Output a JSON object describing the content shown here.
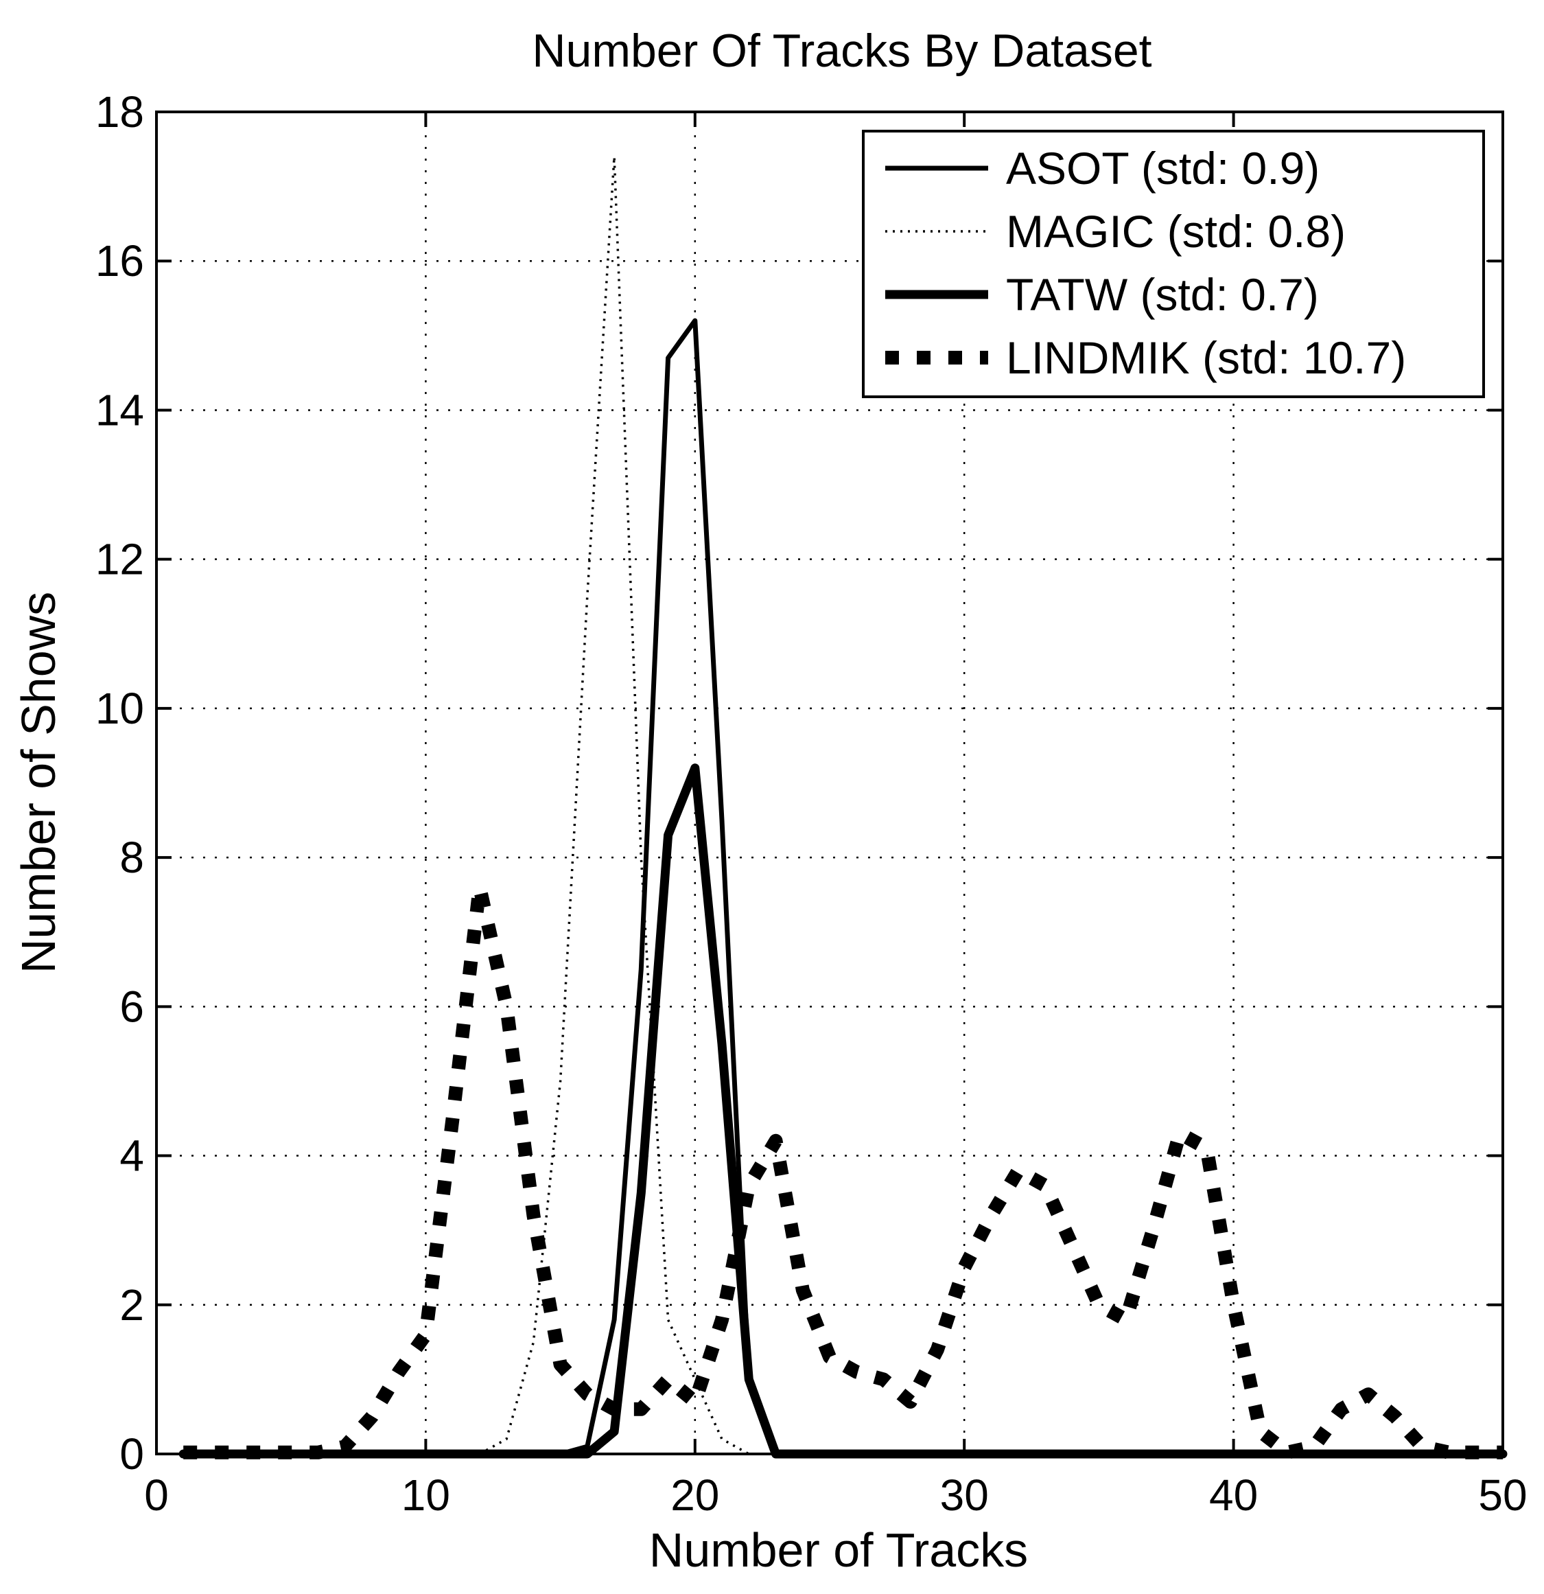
{
  "chart_data": {
    "type": "line",
    "title": "Number Of Tracks By Dataset",
    "xlabel": "Number of Tracks",
    "ylabel": "Number of Shows",
    "xlim": [
      0,
      50
    ],
    "ylim": [
      0,
      18
    ],
    "xticks": [
      0,
      10,
      20,
      30,
      40,
      50
    ],
    "yticks": [
      0,
      2,
      4,
      6,
      8,
      10,
      12,
      14,
      16,
      18
    ],
    "grid": true,
    "legend_position": "top-right",
    "series": [
      {
        "name": "ASOT (std: 0.9)",
        "style": "solid-thin",
        "color": "#000000",
        "points": [
          [
            1,
            0
          ],
          [
            15,
            0
          ],
          [
            16,
            0.1
          ],
          [
            17,
            1.8
          ],
          [
            18,
            6.5
          ],
          [
            19,
            14.7
          ],
          [
            20,
            15.2
          ],
          [
            21,
            8.5
          ],
          [
            22,
            1.0
          ],
          [
            23,
            0
          ],
          [
            50,
            0
          ]
        ]
      },
      {
        "name": "MAGIC (std: 0.8)",
        "style": "dotted",
        "color": "#000000",
        "points": [
          [
            12,
            0
          ],
          [
            13,
            0.2
          ],
          [
            14,
            1.5
          ],
          [
            15,
            5.0
          ],
          [
            16,
            11.5
          ],
          [
            17,
            17.4
          ],
          [
            18,
            8.0
          ],
          [
            19,
            1.8
          ],
          [
            20,
            1.0
          ],
          [
            21,
            0.2
          ],
          [
            22,
            0
          ],
          [
            50,
            0
          ]
        ]
      },
      {
        "name": "TATW (std: 0.7)",
        "style": "solid-thick",
        "color": "#000000",
        "points": [
          [
            1,
            0
          ],
          [
            16,
            0
          ],
          [
            17,
            0.3
          ],
          [
            18,
            3.5
          ],
          [
            19,
            8.3
          ],
          [
            20,
            9.2
          ],
          [
            21,
            5.5
          ],
          [
            22,
            1.0
          ],
          [
            23,
            0
          ],
          [
            50,
            0
          ]
        ]
      },
      {
        "name": "LINDMIK (std: 10.7)",
        "style": "dashed-thick",
        "color": "#000000",
        "points": [
          [
            1,
            0.02
          ],
          [
            3,
            0.02
          ],
          [
            5,
            0.02
          ],
          [
            6,
            0.02
          ],
          [
            7,
            0.1
          ],
          [
            8,
            0.5
          ],
          [
            9,
            1.1
          ],
          [
            10,
            1.6
          ],
          [
            11,
            4.5
          ],
          [
            12,
            7.6
          ],
          [
            13,
            6.0
          ],
          [
            14,
            3.2
          ],
          [
            15,
            1.2
          ],
          [
            16,
            0.8
          ],
          [
            17,
            0.6
          ],
          [
            18,
            0.6
          ],
          [
            19,
            1.0
          ],
          [
            20,
            0.7
          ],
          [
            21,
            1.8
          ],
          [
            22,
            3.6
          ],
          [
            23,
            4.2
          ],
          [
            24,
            2.2
          ],
          [
            25,
            1.3
          ],
          [
            26,
            1.1
          ],
          [
            27,
            1.0
          ],
          [
            28,
            0.7
          ],
          [
            29,
            1.4
          ],
          [
            30,
            2.5
          ],
          [
            31,
            3.2
          ],
          [
            32,
            3.8
          ],
          [
            33,
            3.6
          ],
          [
            34,
            2.8
          ],
          [
            35,
            2.0
          ],
          [
            36,
            1.8
          ],
          [
            37,
            3.0
          ],
          [
            38,
            4.3
          ],
          [
            39,
            4.1
          ],
          [
            40,
            2.0
          ],
          [
            41,
            0.3
          ],
          [
            42,
            0.02
          ],
          [
            43,
            0.1
          ],
          [
            44,
            0.6
          ],
          [
            45,
            0.8
          ],
          [
            46,
            0.5
          ],
          [
            47,
            0.1
          ],
          [
            48,
            0.02
          ],
          [
            50,
            0.02
          ]
        ]
      }
    ]
  }
}
